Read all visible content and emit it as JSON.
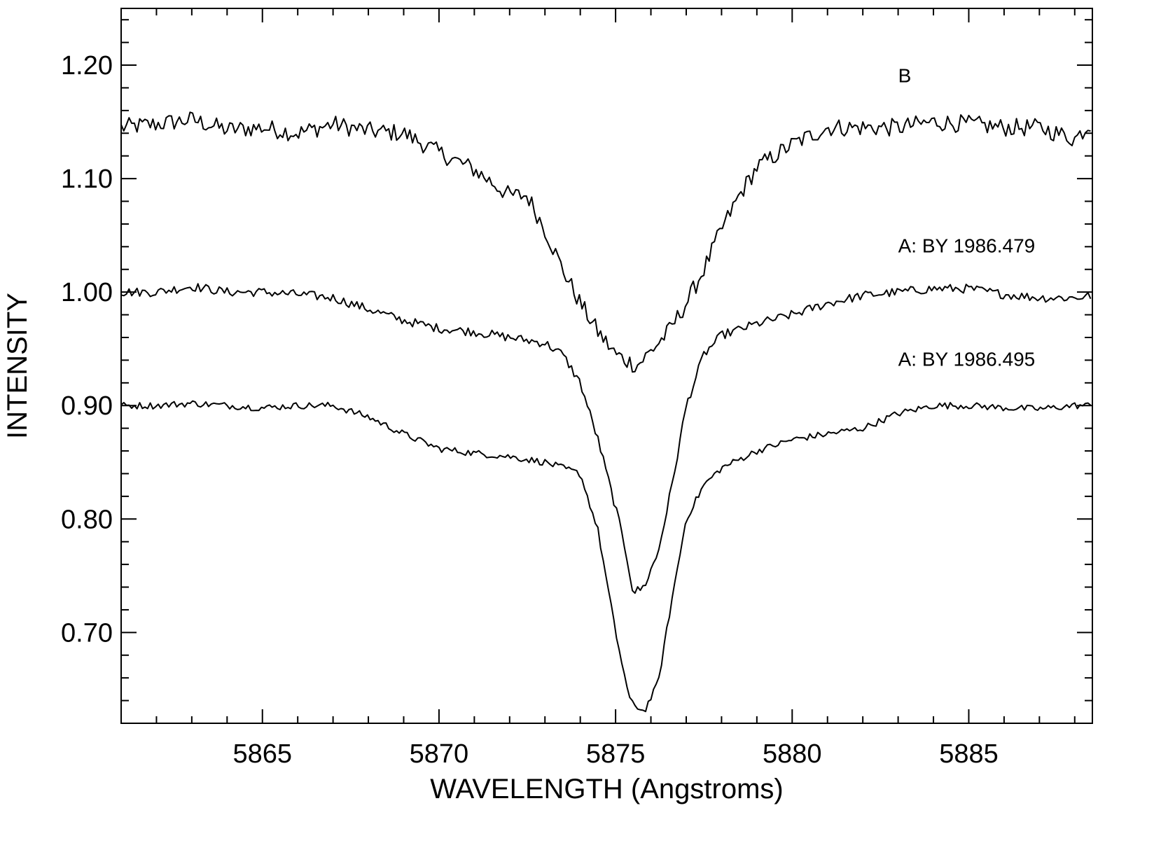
{
  "chart_data": {
    "type": "line",
    "title": "",
    "xlabel": "WAVELENGTH (Angstroms)",
    "ylabel": "INTENSITY",
    "xlim": [
      5861,
      5888.5
    ],
    "ylim": [
      0.62,
      1.25
    ],
    "x_ticks": [
      5865,
      5870,
      5875,
      5880,
      5885
    ],
    "y_ticks": [
      0.7,
      0.8,
      0.9,
      1.0,
      1.1,
      1.2
    ],
    "y_tick_labels": [
      "0.70",
      "0.80",
      "0.90",
      "1.00",
      "1.10",
      "1.20"
    ],
    "x_minor_step": 1,
    "y_minor_step": 0.02,
    "grid": false,
    "legend": "none",
    "line_color": "#000000",
    "series": [
      {
        "name": "B",
        "label_anchor": [
          5883,
          1.185
        ],
        "x": [
          5861,
          5862,
          5863,
          5864,
          5865,
          5866,
          5867,
          5868,
          5869,
          5870,
          5871,
          5872,
          5872.5,
          5873,
          5873.5,
          5874,
          5874.5,
          5875,
          5875.3,
          5875.6,
          5876,
          5876.5,
          5877,
          5877.5,
          5878,
          5878.5,
          5879,
          5880,
          5881,
          5882,
          5883,
          5884,
          5885,
          5886,
          5887,
          5888,
          5888.5
        ],
        "values": [
          1.145,
          1.148,
          1.152,
          1.143,
          1.145,
          1.14,
          1.148,
          1.142,
          1.14,
          1.123,
          1.108,
          1.085,
          1.085,
          1.055,
          1.02,
          0.99,
          0.965,
          0.945,
          0.94,
          0.935,
          0.948,
          0.965,
          0.99,
          1.02,
          1.055,
          1.085,
          1.11,
          1.13,
          1.145,
          1.145,
          1.145,
          1.15,
          1.148,
          1.145,
          1.145,
          1.135,
          1.15
        ]
      },
      {
        "name": "A: BY 1986.479",
        "label_anchor": [
          5883,
          1.035
        ],
        "x": [
          5861,
          5862,
          5863,
          5864,
          5865,
          5866,
          5867,
          5868,
          5869,
          5870,
          5871,
          5872,
          5873,
          5873.5,
          5874,
          5874.5,
          5875,
          5875.3,
          5875.5,
          5875.8,
          5876.2,
          5876.6,
          5877,
          5877.5,
          5878,
          5879,
          5880,
          5881,
          5882,
          5883,
          5884,
          5885,
          5886,
          5887,
          5888,
          5888.5
        ],
        "values": [
          1.0,
          1.0,
          1.005,
          1.0,
          1.0,
          0.998,
          0.995,
          0.985,
          0.975,
          0.968,
          0.965,
          0.96,
          0.955,
          0.945,
          0.92,
          0.87,
          0.81,
          0.77,
          0.735,
          0.74,
          0.77,
          0.83,
          0.9,
          0.945,
          0.962,
          0.972,
          0.98,
          0.99,
          0.997,
          1.0,
          1.003,
          1.003,
          0.998,
          0.995,
          0.995,
          0.997
        ]
      },
      {
        "name": "A: BY 1986.495",
        "label_anchor": [
          5883,
          0.935
        ],
        "x": [
          5861,
          5862,
          5863,
          5864,
          5865,
          5866,
          5867,
          5868,
          5869,
          5870,
          5871,
          5872,
          5873,
          5874,
          5874.5,
          5875,
          5875.4,
          5875.8,
          5876.2,
          5876.6,
          5877,
          5877.5,
          5878,
          5879,
          5880,
          5881,
          5882,
          5883,
          5884,
          5885,
          5886,
          5887,
          5888,
          5888.5
        ],
        "values": [
          0.9,
          0.9,
          0.902,
          0.9,
          0.898,
          0.9,
          0.9,
          0.89,
          0.875,
          0.862,
          0.858,
          0.855,
          0.85,
          0.84,
          0.79,
          0.7,
          0.64,
          0.63,
          0.655,
          0.73,
          0.8,
          0.83,
          0.845,
          0.86,
          0.87,
          0.875,
          0.88,
          0.893,
          0.9,
          0.9,
          0.898,
          0.897,
          0.9,
          0.9
        ]
      }
    ]
  }
}
